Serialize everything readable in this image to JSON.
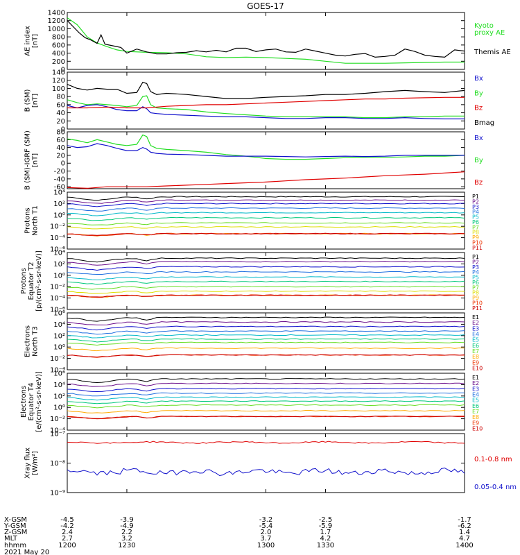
{
  "title": "GOES-17",
  "colors": {
    "black": "#000000",
    "red": "#e00000",
    "green": "#22dd22",
    "blue": "#1010cc",
    "frame": "#000000"
  },
  "chart_data": [
    {
      "type": "line",
      "ylabel": [
        "AE index",
        "[nT]"
      ],
      "ylim": [
        0,
        1400
      ],
      "yticks": [
        "1400",
        "1200",
        "1000",
        "800",
        "600",
        "400",
        "200",
        "0"
      ],
      "yvals": [
        1400,
        1200,
        1000,
        800,
        600,
        400,
        200,
        0
      ],
      "legend": [
        {
          "text": "Kyoto",
          "color": "#22dd22"
        },
        {
          "text": "proxy AE",
          "color": "#22dd22"
        },
        {
          "text": "Themis AE",
          "color": "#000000"
        }
      ],
      "series": [
        {
          "color": "#22dd22",
          "x": [
            1200,
            1205,
            1210,
            1215,
            1220,
            1225,
            1230,
            1240,
            1250,
            1260,
            1270,
            1280,
            1290,
            1300,
            1310,
            1320,
            1330,
            1340,
            1350,
            1360,
            1370,
            1380,
            1390,
            1400
          ],
          "y": [
            1270,
            1100,
            800,
            650,
            560,
            480,
            440,
            420,
            410,
            380,
            310,
            290,
            300,
            290,
            270,
            250,
            200,
            150,
            150,
            150,
            160,
            170,
            180,
            180
          ]
        },
        {
          "color": "#000000",
          "x": [
            1200,
            1203,
            1206,
            1209,
            1212,
            1215,
            1217,
            1219,
            1221,
            1224,
            1227,
            1230,
            1235,
            1240,
            1245,
            1250,
            1255,
            1260,
            1265,
            1270,
            1275,
            1280,
            1285,
            1290,
            1295,
            1300,
            1305,
            1310,
            1315,
            1320,
            1325,
            1330,
            1335,
            1340,
            1345,
            1350,
            1355,
            1360,
            1365,
            1370,
            1375,
            1380,
            1385,
            1390,
            1395,
            1400
          ],
          "y": [
            1200,
            1050,
            900,
            780,
            720,
            640,
            850,
            620,
            600,
            570,
            540,
            400,
            500,
            430,
            380,
            380,
            410,
            420,
            460,
            430,
            470,
            430,
            520,
            520,
            440,
            480,
            500,
            430,
            420,
            500,
            450,
            400,
            350,
            330,
            370,
            390,
            300,
            320,
            350,
            500,
            440,
            350,
            320,
            300,
            480,
            450
          ]
        }
      ]
    },
    {
      "type": "line",
      "ylabel": [
        "B (SM)",
        "[nT]"
      ],
      "ylim": [
        0,
        140
      ],
      "yticks": [
        "140",
        "120",
        "100",
        "80",
        "60",
        "40",
        "20",
        "0"
      ],
      "yvals": [
        140,
        120,
        100,
        80,
        60,
        40,
        20,
        0
      ],
      "legend": [
        {
          "text": "Bx",
          "color": "#1010cc"
        },
        {
          "text": "By",
          "color": "#22dd22"
        },
        {
          "text": "Bz",
          "color": "#e00000"
        },
        {
          "text": "Bmag",
          "color": "#000000"
        }
      ],
      "series": [
        {
          "color": "#000000",
          "x": [
            1200,
            1205,
            1210,
            1215,
            1220,
            1225,
            1230,
            1235,
            1238,
            1240,
            1242,
            1245,
            1250,
            1260,
            1270,
            1280,
            1290,
            1300,
            1310,
            1320,
            1330,
            1340,
            1350,
            1360,
            1370,
            1380,
            1390,
            1400
          ],
          "y": [
            110,
            100,
            96,
            100,
            98,
            98,
            88,
            90,
            115,
            112,
            92,
            85,
            88,
            85,
            80,
            75,
            75,
            78,
            80,
            82,
            85,
            85,
            88,
            92,
            95,
            92,
            90,
            95
          ]
        },
        {
          "color": "#22dd22",
          "x": [
            1200,
            1205,
            1210,
            1215,
            1220,
            1225,
            1230,
            1235,
            1238,
            1240,
            1242,
            1245,
            1250,
            1260,
            1270,
            1280,
            1290,
            1300,
            1310,
            1320,
            1330,
            1340,
            1350,
            1360,
            1370,
            1380,
            1390,
            1400
          ],
          "y": [
            72,
            65,
            60,
            62,
            60,
            58,
            55,
            58,
            80,
            82,
            60,
            52,
            50,
            48,
            42,
            38,
            35,
            32,
            30,
            30,
            30,
            30,
            28,
            28,
            30,
            30,
            32,
            32
          ]
        },
        {
          "color": "#1010cc",
          "x": [
            1200,
            1205,
            1210,
            1215,
            1220,
            1225,
            1230,
            1235,
            1238,
            1240,
            1242,
            1245,
            1250,
            1260,
            1270,
            1280,
            1290,
            1300,
            1310,
            1320,
            1330,
            1340,
            1350,
            1360,
            1370,
            1380,
            1390,
            1400
          ],
          "y": [
            58,
            52,
            58,
            60,
            55,
            48,
            45,
            45,
            55,
            50,
            40,
            38,
            36,
            34,
            32,
            30,
            30,
            28,
            26,
            26,
            28,
            28,
            26,
            26,
            28,
            26,
            25,
            25
          ]
        },
        {
          "color": "#e00000",
          "x": [
            1200,
            1210,
            1220,
            1230,
            1240,
            1250,
            1260,
            1270,
            1280,
            1290,
            1300,
            1310,
            1320,
            1330,
            1340,
            1350,
            1360,
            1370,
            1380,
            1390,
            1400
          ],
          "y": [
            52,
            52,
            54,
            52,
            52,
            56,
            58,
            60,
            60,
            62,
            64,
            66,
            68,
            70,
            72,
            74,
            74,
            76,
            77,
            78,
            78
          ]
        }
      ]
    },
    {
      "type": "line",
      "ylabel": [
        "B (SM)-IGRF (SM)",
        "[nT]"
      ],
      "ylim": [
        -65,
        80
      ],
      "yticks": [
        "80",
        "60",
        "40",
        "20",
        "0",
        "-20",
        "-40",
        "-60"
      ],
      "yvals": [
        80,
        60,
        40,
        20,
        0,
        -20,
        -40,
        -60
      ],
      "legend": [
        {
          "text": "Bx",
          "color": "#1010cc"
        },
        {
          "text": "By",
          "color": "#22dd22"
        },
        {
          "text": "Bz",
          "color": "#e00000"
        }
      ],
      "series": [
        {
          "color": "#22dd22",
          "x": [
            1200,
            1205,
            1210,
            1215,
            1220,
            1225,
            1230,
            1235,
            1238,
            1240,
            1242,
            1245,
            1250,
            1260,
            1270,
            1280,
            1290,
            1300,
            1310,
            1320,
            1330,
            1340,
            1350,
            1360,
            1370,
            1380,
            1390,
            1400
          ],
          "y": [
            62,
            58,
            52,
            60,
            54,
            48,
            45,
            48,
            72,
            68,
            45,
            38,
            35,
            32,
            28,
            22,
            18,
            12,
            10,
            10,
            12,
            14,
            15,
            15,
            16,
            18,
            18,
            20
          ]
        },
        {
          "color": "#1010cc",
          "x": [
            1200,
            1205,
            1210,
            1215,
            1220,
            1225,
            1230,
            1235,
            1238,
            1240,
            1242,
            1245,
            1250,
            1260,
            1270,
            1280,
            1290,
            1300,
            1310,
            1320,
            1330,
            1340,
            1350,
            1360,
            1370,
            1380,
            1390,
            1400
          ],
          "y": [
            45,
            40,
            42,
            50,
            45,
            38,
            32,
            32,
            40,
            36,
            28,
            25,
            23,
            22,
            20,
            18,
            18,
            18,
            17,
            16,
            17,
            18,
            17,
            18,
            20,
            20,
            20,
            20
          ]
        },
        {
          "color": "#e00000",
          "x": [
            1200,
            1210,
            1220,
            1230,
            1240,
            1250,
            1260,
            1270,
            1280,
            1290,
            1300,
            1310,
            1320,
            1330,
            1340,
            1350,
            1360,
            1370,
            1380,
            1390,
            1400
          ],
          "y": [
            -62,
            -64,
            -60,
            -60,
            -60,
            -58,
            -56,
            -54,
            -52,
            -50,
            -48,
            -45,
            -42,
            -40,
            -38,
            -35,
            -32,
            -30,
            -28,
            -25,
            -22
          ]
        }
      ]
    },
    {
      "type": "line",
      "log": true,
      "ylabel": [
        "Protons",
        "North T1"
      ],
      "ylim": [
        -6,
        4
      ],
      "yticks": [
        "10⁴",
        "10²",
        "10⁰",
        "10⁻²",
        "10⁻⁴",
        "10⁻⁶"
      ],
      "yvals": [
        4,
        2,
        0,
        -2,
        -4,
        -6
      ],
      "channels": [
        {
          "text": "P1",
          "color": "#000000",
          "level": 3.2
        },
        {
          "text": "P2",
          "color": "#6a0d8a",
          "level": 2.6
        },
        {
          "text": "P3",
          "color": "#1010cc",
          "level": 2.0
        },
        {
          "text": "P4",
          "color": "#1e6fe0",
          "level": 1.2
        },
        {
          "text": "P5",
          "color": "#00b8c8",
          "level": 0.4
        },
        {
          "text": "P6",
          "color": "#00c87a",
          "level": -0.5
        },
        {
          "text": "P7",
          "color": "#66dd22",
          "level": -1.4
        },
        {
          "text": "P8",
          "color": "#dddd00",
          "level": -2.1
        },
        {
          "text": "P9",
          "color": "#ffaa00",
          "level": -3.3
        },
        {
          "text": "P10",
          "color": "#ee3300",
          "level": -3.3
        },
        {
          "text": "P11",
          "color": "#cc0000",
          "level": -3.3
        }
      ]
    },
    {
      "type": "line",
      "log": true,
      "ylabel": [
        "Protons",
        "Equator T2",
        "[p/(cm²-s-sr-keV)]"
      ],
      "ylim": [
        -6,
        4
      ],
      "yticks": [
        "10⁴",
        "10²",
        "10⁰",
        "10⁻²",
        "10⁻⁴",
        "10⁻⁶"
      ],
      "yvals": [
        4,
        2,
        0,
        -2,
        -4,
        -6
      ],
      "channels": [
        {
          "text": "P1",
          "color": "#000000",
          "level": 3.0
        },
        {
          "text": "P2",
          "color": "#6a0d8a",
          "level": 2.4
        },
        {
          "text": "P3",
          "color": "#1010cc",
          "level": 1.5
        },
        {
          "text": "P4",
          "color": "#1e6fe0",
          "level": 0.6
        },
        {
          "text": "P5",
          "color": "#00b8c8",
          "level": -0.3
        },
        {
          "text": "P6",
          "color": "#00c87a",
          "level": -1.1
        },
        {
          "text": "P7",
          "color": "#66dd22",
          "level": -2.0
        },
        {
          "text": "P8",
          "color": "#dddd00",
          "level": -2.8
        },
        {
          "text": "P9",
          "color": "#ffaa00",
          "level": -3.5
        },
        {
          "text": "P10",
          "color": "#ee3300",
          "level": -3.5
        },
        {
          "text": "P11",
          "color": "#cc0000",
          "level": -3.5
        }
      ]
    },
    {
      "type": "line",
      "log": true,
      "ylabel": [
        "Electrons",
        "North T3"
      ],
      "ylim": [
        -4,
        6
      ],
      "yticks": [
        "10⁶",
        "10⁴",
        "10²",
        "10⁰",
        "10⁻²",
        "10⁻⁴"
      ],
      "yvals": [
        6,
        4,
        2,
        0,
        -2,
        -4
      ],
      "channels": [
        {
          "text": "E1",
          "color": "#000000",
          "level": 5.2
        },
        {
          "text": "E2",
          "color": "#6a0d8a",
          "level": 4.4
        },
        {
          "text": "E3",
          "color": "#1010cc",
          "level": 3.6
        },
        {
          "text": "E4",
          "color": "#1e6fe0",
          "level": 2.8
        },
        {
          "text": "E5",
          "color": "#00b8c8",
          "level": 2.1
        },
        {
          "text": "E6",
          "color": "#00c87a",
          "level": 1.4
        },
        {
          "text": "E7",
          "color": "#66dd22",
          "level": 0.8
        },
        {
          "text": "E8",
          "color": "#ffaa00",
          "level": -0.2
        },
        {
          "text": "E9",
          "color": "#ee3300",
          "level": -1.4
        },
        {
          "text": "E10",
          "color": "#cc0000",
          "level": -1.4
        }
      ]
    },
    {
      "type": "line",
      "log": true,
      "ylabel": [
        "Electrons",
        "Equator T4",
        "[e/(cm²-s-sr-keV)]"
      ],
      "ylim": [
        -4,
        6
      ],
      "yticks": [
        "10⁶",
        "10⁴",
        "10²",
        "10⁰",
        "10⁻²",
        "10⁻⁴"
      ],
      "yvals": [
        6,
        4,
        2,
        0,
        -2,
        -4
      ],
      "channels": [
        {
          "text": "E1",
          "color": "#000000",
          "level": 5.0
        },
        {
          "text": "E2",
          "color": "#6a0d8a",
          "level": 4.2
        },
        {
          "text": "E3",
          "color": "#1010cc",
          "level": 3.3
        },
        {
          "text": "E4",
          "color": "#1e6fe0",
          "level": 2.5
        },
        {
          "text": "E5",
          "color": "#00b8c8",
          "level": 1.8
        },
        {
          "text": "E6",
          "color": "#00c87a",
          "level": 1.1
        },
        {
          "text": "E7",
          "color": "#66dd22",
          "level": 0.4
        },
        {
          "text": "E8",
          "color": "#ffaa00",
          "level": -0.6
        },
        {
          "text": "E9",
          "color": "#ee3300",
          "level": -1.6
        },
        {
          "text": "E10",
          "color": "#cc0000",
          "level": -1.6
        }
      ]
    },
    {
      "type": "line",
      "log": true,
      "ylabel": [
        "Xray flux",
        "[W/m²]"
      ],
      "ylim": [
        -9,
        -7
      ],
      "yticks": [
        "10⁻⁷",
        "10⁻⁸",
        "10⁻⁹"
      ],
      "yvals": [
        -7,
        -8,
        -9
      ],
      "legend": [
        {
          "text": "0.1-0.8 nm",
          "color": "#e00000"
        },
        {
          "text": "0.05-0.4 nm",
          "color": "#1010cc"
        }
      ],
      "series_levels": [
        {
          "color": "#e00000",
          "level": -7.3
        },
        {
          "color": "#1010cc",
          "level": -8.3
        }
      ]
    }
  ],
  "xaxis": {
    "xlim": [
      1200,
      1400
    ],
    "row_labels": [
      "X-GSM",
      "Y-GSM",
      "Z-GSM",
      "MLT",
      "hhmm"
    ],
    "columns": [
      {
        "x": 1200,
        "values": [
          "-4.5",
          "-4.2",
          "2.4",
          "2.7",
          "1200"
        ]
      },
      {
        "x": 1230,
        "values": [
          "-3.9",
          "-4.9",
          "2.2",
          "3.2",
          "1230"
        ]
      },
      {
        "x": 1300,
        "values": [
          "-3.2",
          "-5.4",
          "2.0",
          "3.7",
          "1300"
        ]
      },
      {
        "x": 1330,
        "values": [
          "-2.5",
          "-5.9",
          "1.7",
          "4.2",
          "1330"
        ]
      },
      {
        "x": 1400,
        "values": [
          "-1.7",
          "-6.2",
          "1.4",
          "4.7",
          "1400"
        ]
      }
    ],
    "date": "2021 May 20"
  }
}
